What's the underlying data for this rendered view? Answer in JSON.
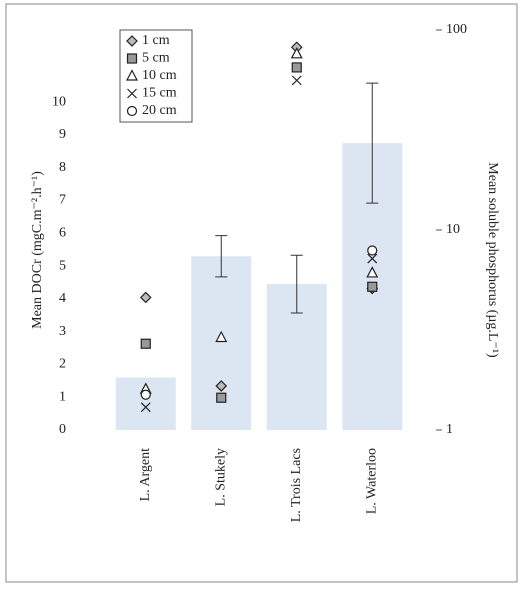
{
  "chart_data": {
    "type": "bar",
    "categories": [
      "L. Argent",
      "L. Stukely",
      "L. Trois Lacs",
      "L. Waterloo"
    ],
    "bars": {
      "color": "#dce6f2",
      "values": [
        1.6,
        5.3,
        4.45,
        8.75
      ],
      "errors": [
        null,
        0.63,
        0.88,
        1.83
      ]
    },
    "series": [
      {
        "name": "1 cm",
        "marker": "diamond",
        "color": "#bbbbbb",
        "axis": "y2",
        "values": [
          4.6,
          1.66,
          82,
          5.1
        ]
      },
      {
        "name": "5 cm",
        "marker": "square",
        "color": "#999999",
        "axis": "y2",
        "values": [
          2.7,
          1.45,
          65,
          5.2
        ]
      },
      {
        "name": "10 cm",
        "marker": "triangle",
        "color": "#ffffff",
        "axis": "y2",
        "values": [
          1.6,
          2.9,
          76,
          6.1
        ]
      },
      {
        "name": "15 cm",
        "marker": "cross",
        "color": "#333333",
        "axis": "y2",
        "values": [
          1.3,
          null,
          56,
          7.2
        ]
      },
      {
        "name": "20 cm",
        "marker": "circle",
        "color": "#ffffff",
        "axis": "y2",
        "values": [
          1.5,
          null,
          null,
          7.9
        ]
      }
    ],
    "ylabel": "Mean DOCr (mgC.m⁻².h⁻¹)",
    "y2label": "Mean soluble phosphorus (µg.L⁻¹)",
    "ylim": [
      0,
      12.2
    ],
    "yticks": [
      0,
      1,
      2,
      3,
      4,
      5,
      6,
      7,
      8,
      9,
      10
    ],
    "y2lim": [
      1,
      100
    ],
    "y2ticks": [
      1,
      10,
      100
    ],
    "y2log": true,
    "legend": "upper left"
  }
}
